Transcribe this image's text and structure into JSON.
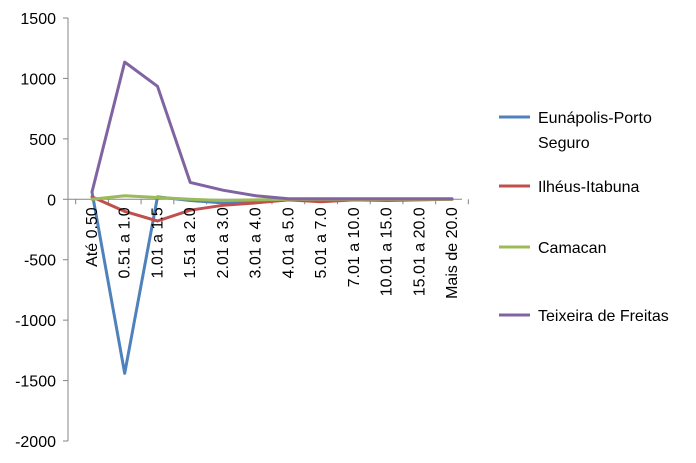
{
  "chart_data": {
    "type": "line",
    "categories": [
      "Até 0.50",
      "0.51 a 1.0",
      "1.01 a 1.5",
      "1.51 a 2.0",
      "2.01 a 3.0",
      "3.01 a 4.0",
      "4.01 a 5.0",
      "5.01 a 7.0",
      "7.01 a 10.0",
      "10.01 a 15.0",
      "15.01 a 20.0",
      "Mais de 20.0"
    ],
    "yticks": [
      "1500",
      "1000",
      "500",
      "0",
      "-500",
      "-1000",
      "-1500",
      "-2000"
    ],
    "ylim": [
      -2000,
      1500
    ],
    "legend_position": "right",
    "grid": false,
    "series": [
      {
        "name": "Eunápolis-Porto Seguro",
        "color": "#4F81BD",
        "values": [
          60,
          -1440,
          20,
          -10,
          -30,
          -20,
          -5,
          0,
          0,
          0,
          0,
          0
        ]
      },
      {
        "name": "Ilhéus-Itabuna",
        "color": "#C0504D",
        "values": [
          20,
          -100,
          -180,
          -90,
          -50,
          -30,
          -5,
          -20,
          -5,
          -10,
          -5,
          0
        ]
      },
      {
        "name": "Camacan",
        "color": "#9BBB59",
        "values": [
          0,
          30,
          15,
          0,
          -10,
          -5,
          0,
          0,
          0,
          0,
          0,
          0
        ]
      },
      {
        "name": "Teixeira de Freitas",
        "color": "#8064A2",
        "values": [
          60,
          1135,
          935,
          140,
          75,
          30,
          5,
          5,
          5,
          5,
          5,
          5
        ]
      }
    ]
  }
}
